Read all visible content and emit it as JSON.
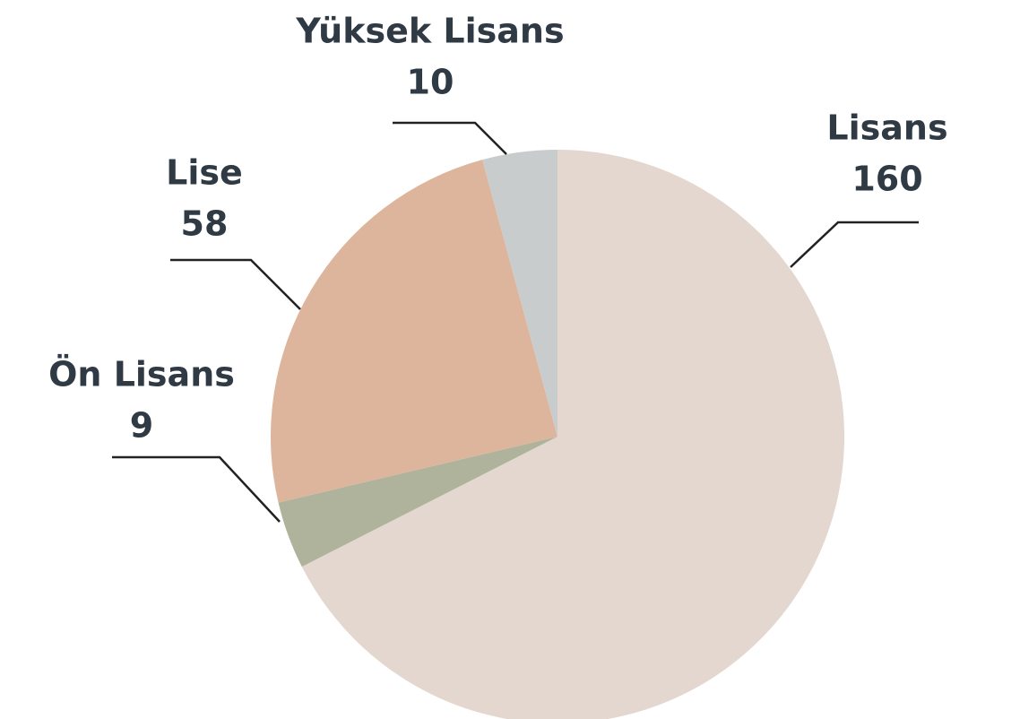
{
  "chart_data": {
    "type": "pie",
    "categories": [
      "Lisans",
      "Ön Lisans",
      "Lise",
      "Yüksek Lisans"
    ],
    "values": [
      160,
      9,
      58,
      10
    ],
    "colors": [
      "#e3d7cf",
      "#afb39c",
      "#ddb59c",
      "#c9cccd"
    ]
  }
}
